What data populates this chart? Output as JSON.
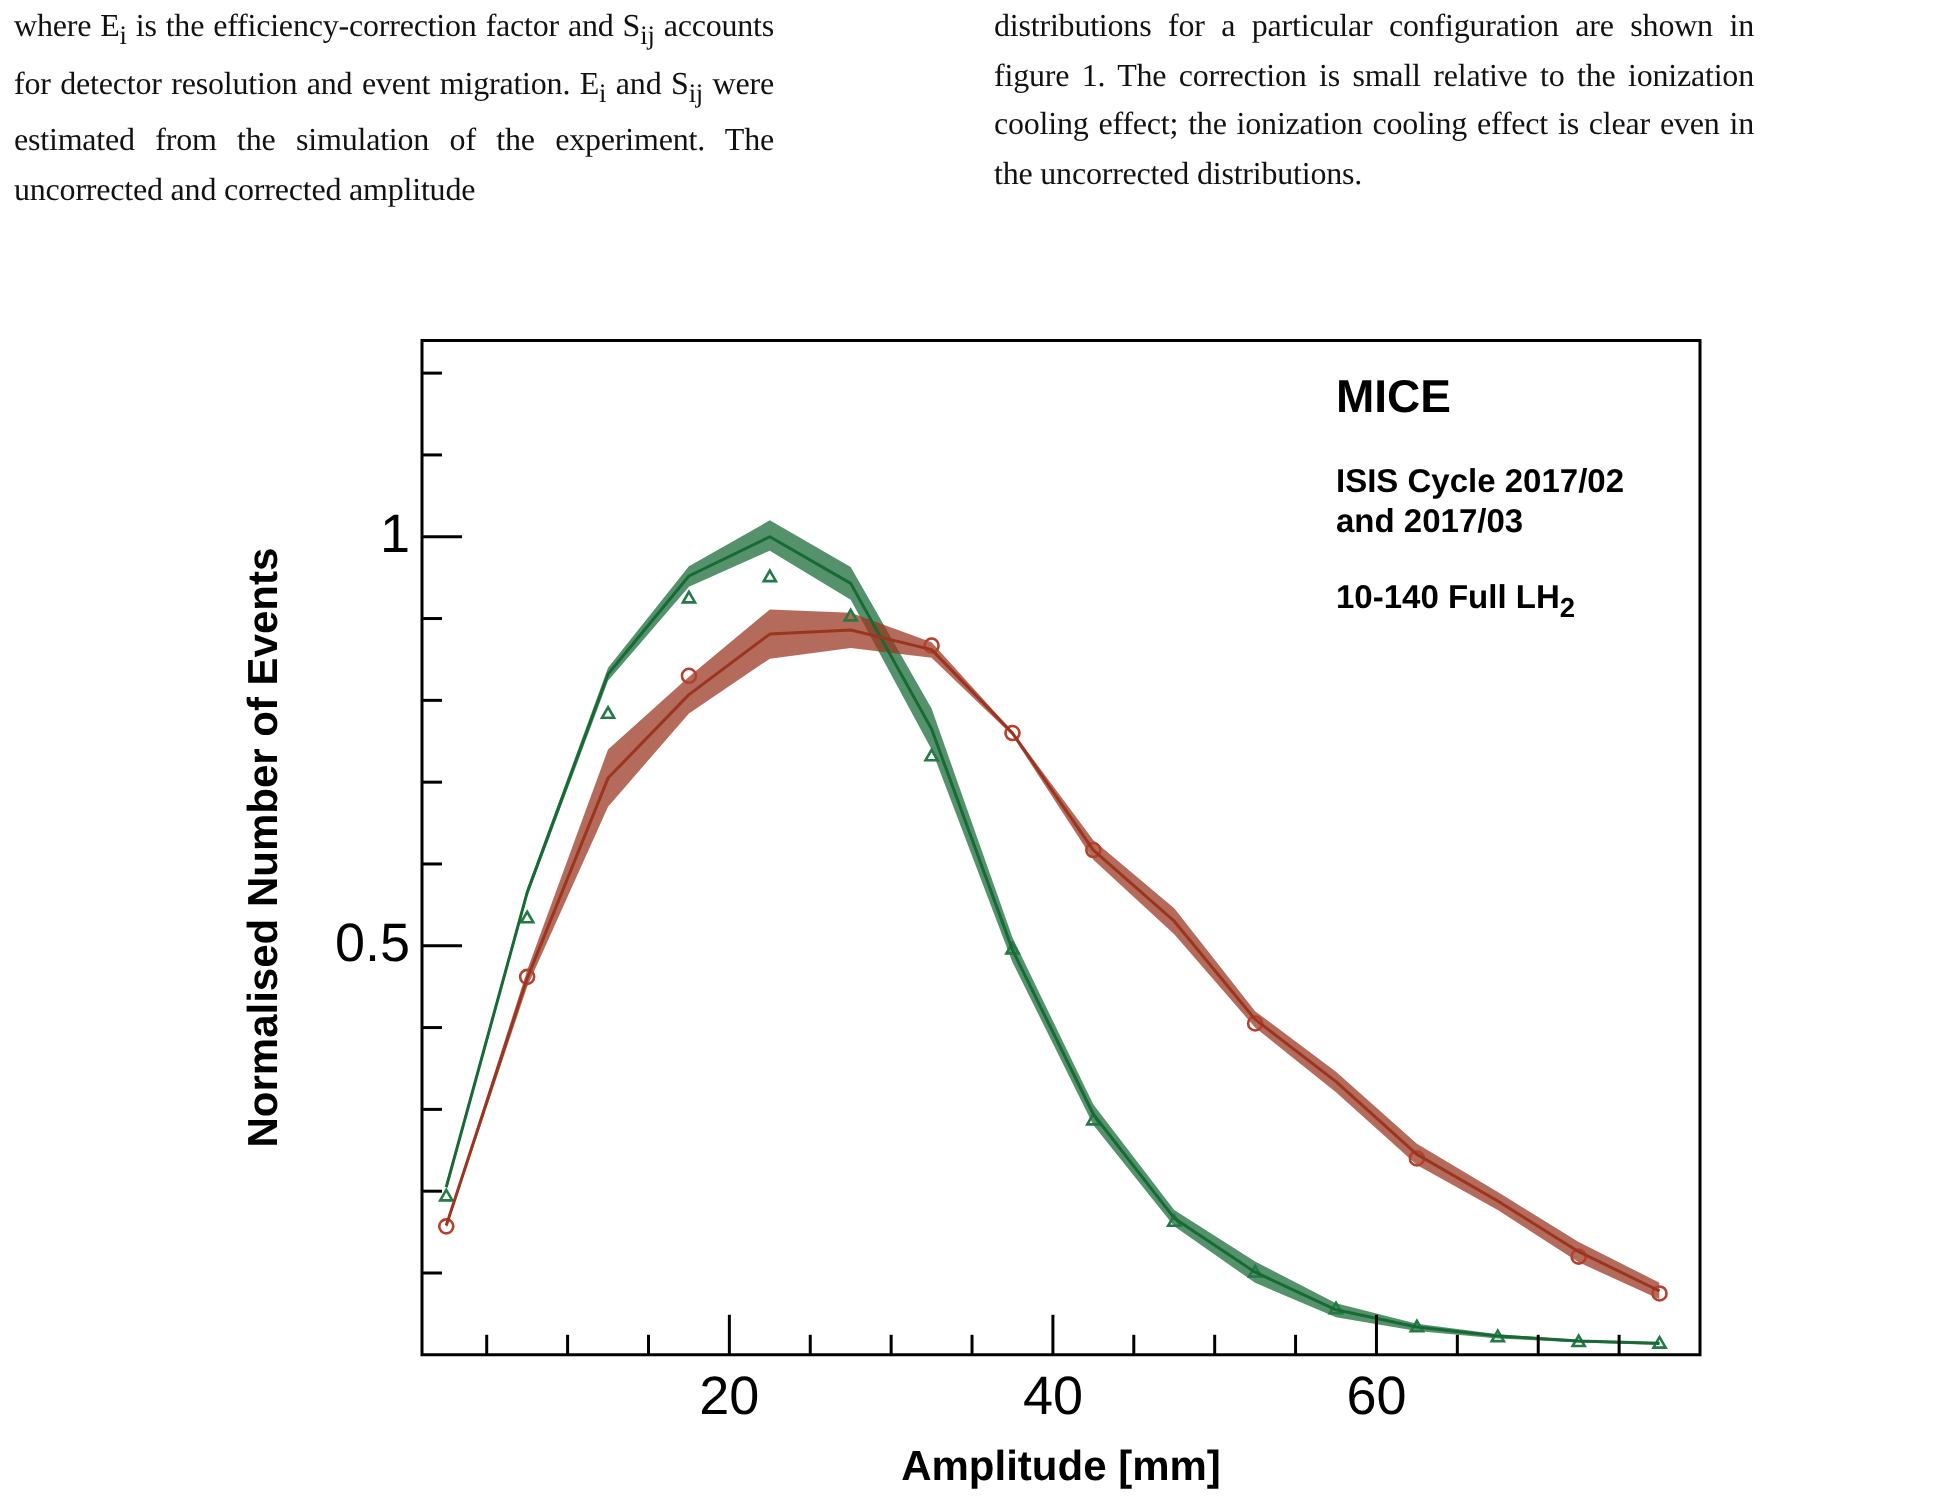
{
  "chart_data": {
    "type": "line",
    "xlabel": "Amplitude [mm]",
    "ylabel": "Normalised Number of Events",
    "annotations": [
      "where E$_{i}$ is the efficiency-correction factor and S$_{ij}$ accounts for detector resolution and event migration. E$_{i}$ and S$_{ij}$ were estimated from the simulation of the experiment. The uncorrected and corrected amplitude",
      "distributions for a particular configuration are shown in figure 1. The correction is small relative to the ionization cooling effect; the ionization cooling effect is clear even in the uncorrected distributions.",
      "MICE",
      "ISIS Cycle 2017/02 and 2017/03",
      "10-140 Full LH$_{2}$"
    ],
    "x": [
      2.5,
      7.5,
      12.5,
      17.5,
      22.5,
      27.5,
      32.5,
      37.5,
      42.5,
      47.5,
      52.5,
      57.5,
      62.5,
      67.5,
      72.5,
      77.5
    ],
    "series": [
      {
        "color": "#9a3520",
        "values": [
          0.158,
          0.46,
          0.705,
          0.807,
          0.881,
          0.886,
          0.862,
          0.76,
          0.617,
          0.53,
          0.41,
          0.334,
          0.245,
          0.188,
          0.126,
          0.078
        ],
        "lower": [
          0.155,
          0.45,
          0.67,
          0.784,
          0.851,
          0.864,
          0.852,
          0.757,
          0.605,
          0.514,
          0.4,
          0.321,
          0.232,
          0.177,
          0.113,
          0.068
        ],
        "upper": [
          0.16,
          0.47,
          0.74,
          0.829,
          0.911,
          0.907,
          0.871,
          0.762,
          0.629,
          0.546,
          0.42,
          0.346,
          0.258,
          0.199,
          0.138,
          0.088
        ]
      },
      {
        "color": "#176a35",
        "values": [
          0.205,
          0.565,
          0.832,
          0.952,
          1.0,
          0.943,
          0.765,
          0.495,
          0.294,
          0.167,
          0.101,
          0.055,
          0.034,
          0.023,
          0.017,
          0.014
        ],
        "lower": [
          0.2,
          0.56,
          0.824,
          0.939,
          0.983,
          0.923,
          0.74,
          0.48,
          0.281,
          0.157,
          0.088,
          0.046,
          0.029,
          0.02,
          0.015,
          0.012
        ],
        "upper": [
          0.21,
          0.57,
          0.84,
          0.964,
          1.02,
          0.963,
          0.79,
          0.51,
          0.306,
          0.177,
          0.114,
          0.063,
          0.038,
          0.025,
          0.018,
          0.015
        ]
      },
      {
        "type": "scatter",
        "color": "#b5402c",
        "marker": "circle",
        "values": [
          0.157,
          0.462,
          null,
          0.83,
          null,
          null,
          0.867,
          0.76,
          0.617,
          null,
          0.405,
          null,
          0.24,
          null,
          0.12,
          0.075
        ]
      },
      {
        "type": "scatter",
        "color": "#237a45",
        "marker": "triangle",
        "values": [
          0.193,
          0.533,
          0.783,
          0.924,
          0.95,
          0.902,
          0.731,
          0.495,
          0.286,
          0.162,
          0.1,
          0.055,
          0.033,
          0.021,
          0.015,
          0.013
        ]
      }
    ],
    "xlim": [
      1,
      80
    ],
    "xticks": [
      {
        "value": 5,
        "label": null
      },
      {
        "value": 10,
        "label": null
      },
      {
        "value": 15,
        "label": null
      },
      20,
      {
        "value": 25,
        "label": null
      },
      {
        "value": 30,
        "label": null
      },
      {
        "value": 35,
        "label": null
      },
      40,
      {
        "value": 45,
        "label": null
      },
      {
        "value": 50,
        "label": null
      },
      {
        "value": 55,
        "label": null
      },
      60,
      {
        "value": 65,
        "label": null
      },
      {
        "value": 70,
        "label": null
      },
      {
        "value": 75,
        "label": null
      }
    ],
    "ylim": [
      0,
      1.24
    ],
    "yticks": [
      {
        "value": 0.1,
        "label": null
      },
      {
        "value": 0.2,
        "label": null
      },
      {
        "value": 0.3,
        "label": null
      },
      {
        "value": 0.4,
        "label": null
      },
      0.5,
      {
        "value": 0.6,
        "label": null
      },
      {
        "value": 0.7,
        "label": null
      },
      {
        "value": 0.8,
        "label": null
      },
      {
        "value": 0.9,
        "label": null
      },
      1,
      {
        "value": 1.1,
        "label": null
      },
      {
        "value": 1.2,
        "label": null
      }
    ],
    "grid": false,
    "legend": false
  }
}
